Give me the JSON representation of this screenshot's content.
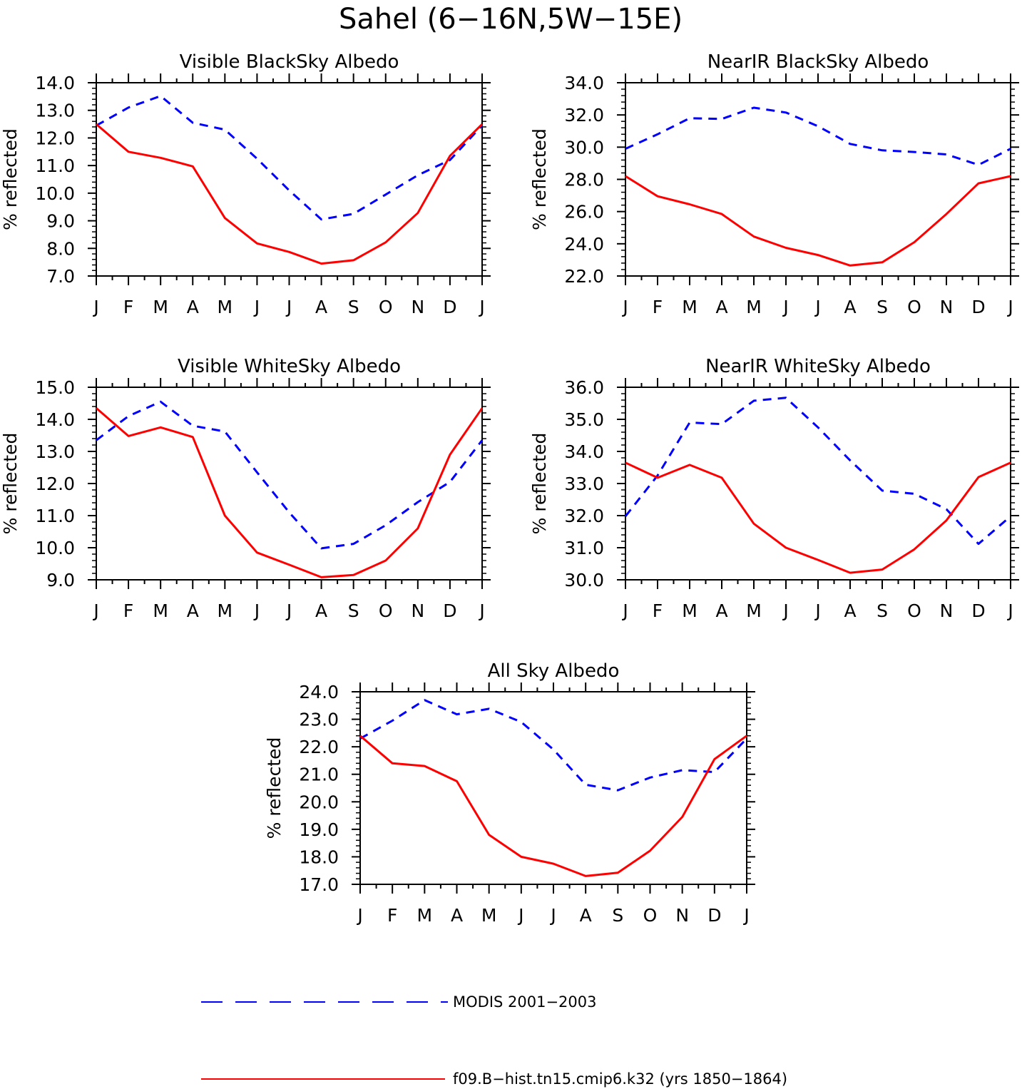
{
  "figure": {
    "title": "Sahel (6−16N,5W−15E)",
    "legend": [
      {
        "label": "MODIS 2001−2003",
        "color": "#0000ff",
        "style": "dashed"
      },
      {
        "label": "f09.B−hist.tn15.cmip6.k32 (yrs 1850−1864)",
        "color": "#ff0000",
        "style": "solid"
      }
    ]
  },
  "chart_data": [
    {
      "type": "line",
      "title": "Visible BlackSky Albedo",
      "ylabel": "% reflected",
      "categories": [
        "J",
        "F",
        "M",
        "A",
        "M",
        "J",
        "J",
        "A",
        "S",
        "O",
        "N",
        "D",
        "J"
      ],
      "ylim": [
        7.0,
        14.0
      ],
      "yticks": [
        "7.0",
        "8.0",
        "9.0",
        "10.0",
        "11.0",
        "12.0",
        "13.0",
        "14.0"
      ],
      "series": [
        {
          "name": "MODIS 2001−2003",
          "color": "#0000ff",
          "style": "dashed",
          "values": [
            12.45,
            13.1,
            13.52,
            12.55,
            12.3,
            11.25,
            10.1,
            9.05,
            9.25,
            9.95,
            10.65,
            11.2,
            12.45
          ]
        },
        {
          "name": "f09.B−hist.tn15.cmip6.k32 (yrs 1850−1864)",
          "color": "#ff0000",
          "style": "solid",
          "values": [
            12.5,
            11.5,
            11.28,
            10.97,
            9.1,
            8.18,
            7.87,
            7.45,
            7.57,
            8.22,
            9.28,
            11.35,
            12.5
          ]
        }
      ]
    },
    {
      "type": "line",
      "title": "NearIR BlackSky Albedo",
      "ylabel": "% reflected",
      "categories": [
        "J",
        "F",
        "M",
        "A",
        "M",
        "J",
        "J",
        "A",
        "S",
        "O",
        "N",
        "D",
        "J"
      ],
      "ylim": [
        22.0,
        34.0
      ],
      "yticks": [
        "22.0",
        "24.0",
        "26.0",
        "28.0",
        "30.0",
        "32.0",
        "34.0"
      ],
      "series": [
        {
          "name": "MODIS 2001−2003",
          "color": "#0000ff",
          "style": "dashed",
          "values": [
            29.9,
            30.8,
            31.8,
            31.75,
            32.45,
            32.15,
            31.3,
            30.2,
            29.8,
            29.7,
            29.55,
            28.9,
            29.9
          ]
        },
        {
          "name": "f09.B−hist.tn15.cmip6.k32 (yrs 1850−1864)",
          "color": "#ff0000",
          "style": "solid",
          "values": [
            28.2,
            26.95,
            26.45,
            25.85,
            24.45,
            23.75,
            23.3,
            22.65,
            22.85,
            24.1,
            25.85,
            27.75,
            28.2
          ]
        }
      ]
    },
    {
      "type": "line",
      "title": "Visible WhiteSky Albedo",
      "ylabel": "% reflected",
      "categories": [
        "J",
        "F",
        "M",
        "A",
        "M",
        "J",
        "J",
        "A",
        "S",
        "O",
        "N",
        "D",
        "J"
      ],
      "ylim": [
        9.0,
        15.0
      ],
      "yticks": [
        "9.0",
        "10.0",
        "11.0",
        "12.0",
        "13.0",
        "14.0",
        "15.0"
      ],
      "series": [
        {
          "name": "MODIS 2001−2003",
          "color": "#0000ff",
          "style": "dashed",
          "values": [
            13.35,
            14.1,
            14.55,
            13.8,
            13.62,
            12.35,
            11.1,
            9.98,
            10.12,
            10.7,
            11.42,
            12.05,
            13.35
          ]
        },
        {
          "name": "f09.B−hist.tn15.cmip6.k32 (yrs 1850−1864)",
          "color": "#ff0000",
          "style": "solid",
          "values": [
            14.35,
            13.48,
            13.75,
            13.45,
            11.0,
            9.85,
            9.47,
            9.08,
            9.15,
            9.6,
            10.6,
            12.9,
            14.35
          ]
        }
      ]
    },
    {
      "type": "line",
      "title": "NearIR WhiteSky Albedo",
      "ylabel": "% reflected",
      "categories": [
        "J",
        "F",
        "M",
        "A",
        "M",
        "J",
        "J",
        "A",
        "S",
        "O",
        "N",
        "D",
        "J"
      ],
      "ylim": [
        30.0,
        36.0
      ],
      "yticks": [
        "30.0",
        "31.0",
        "32.0",
        "33.0",
        "34.0",
        "35.0",
        "36.0"
      ],
      "series": [
        {
          "name": "MODIS 2001−2003",
          "color": "#0000ff",
          "style": "dashed",
          "values": [
            31.98,
            33.25,
            34.9,
            34.85,
            35.58,
            35.67,
            34.75,
            33.72,
            32.78,
            32.68,
            32.2,
            31.12,
            31.98
          ]
        },
        {
          "name": "f09.B−hist.tn15.cmip6.k32 (yrs 1850−1864)",
          "color": "#ff0000",
          "style": "solid",
          "values": [
            33.65,
            33.18,
            33.58,
            33.18,
            31.75,
            31.0,
            30.62,
            30.22,
            30.32,
            30.95,
            31.85,
            33.2,
            33.65
          ]
        }
      ]
    },
    {
      "type": "line",
      "title": "All Sky Albedo",
      "ylabel": "% reflected",
      "categories": [
        "J",
        "F",
        "M",
        "A",
        "M",
        "J",
        "J",
        "A",
        "S",
        "O",
        "N",
        "D",
        "J"
      ],
      "ylim": [
        17.0,
        24.0
      ],
      "yticks": [
        "17.0",
        "18.0",
        "19.0",
        "20.0",
        "21.0",
        "22.0",
        "23.0",
        "24.0"
      ],
      "series": [
        {
          "name": "MODIS 2001−2003",
          "color": "#0000ff",
          "style": "dashed",
          "values": [
            22.3,
            22.95,
            23.7,
            23.18,
            23.38,
            22.9,
            21.9,
            20.62,
            20.42,
            20.88,
            21.15,
            21.08,
            22.3
          ]
        },
        {
          "name": "f09.B−hist.tn15.cmip6.k32 (yrs 1850−1864)",
          "color": "#ff0000",
          "style": "solid",
          "values": [
            22.4,
            21.4,
            21.3,
            20.75,
            18.8,
            18.0,
            17.75,
            17.3,
            17.42,
            18.22,
            19.45,
            21.55,
            22.4
          ]
        }
      ]
    }
  ]
}
